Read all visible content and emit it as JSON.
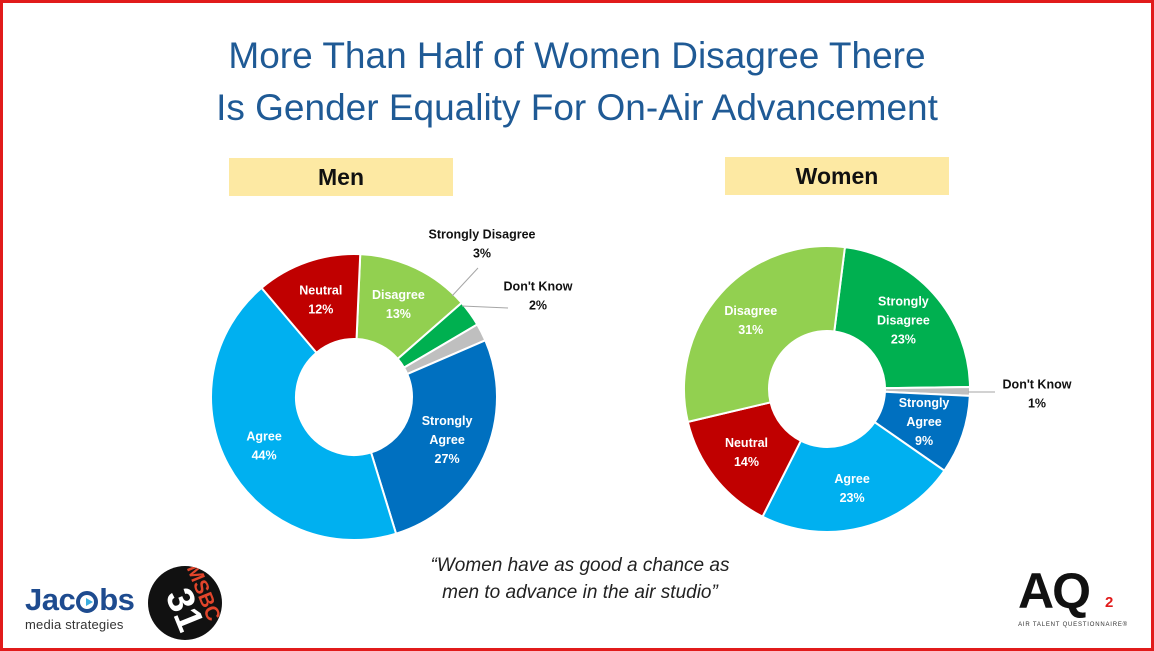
{
  "title": {
    "line1": "More Than Half of Women Disagree There",
    "line2": "Is Gender Equality For On-Air Advancement"
  },
  "quote": {
    "line1": "“Women have as good a chance as",
    "line2": "men to advance in the air studio”"
  },
  "logos": {
    "jacobs_part1": "Jac",
    "jacobs_part2": "bs",
    "jacobs_sub": "media strategies",
    "msbc_text": "MSBC",
    "msbc_num": "31",
    "aq_main": "AQ",
    "aq_superscript": "2",
    "aq_sub": "AIR TALENT QUESTIONNAIRE®"
  },
  "colors": {
    "disagree": "#92d050",
    "strongly_disagree": "#00b050",
    "dont_know": "#bfbfbf",
    "strongly_agree": "#0070c0",
    "agree": "#00b0f0",
    "neutral": "#c00000",
    "title": "#1f5a95",
    "label_box": "#fde9a3",
    "frame": "#e11b1b"
  },
  "chart_data": [
    {
      "type": "pie",
      "title": "Men",
      "slices": [
        {
          "lines": [
            "Disagree",
            "13%"
          ],
          "value": 13,
          "color": "#92d050",
          "label_position": "inside"
        },
        {
          "lines": [
            "Strongly Disagree",
            "3%"
          ],
          "value": 3,
          "color": "#00b050",
          "label_position": "outside-top"
        },
        {
          "lines": [
            "Don't Know",
            "2%"
          ],
          "value": 2,
          "color": "#bfbfbf",
          "label_position": "outside-right"
        },
        {
          "lines": [
            "Strongly",
            "Agree",
            "27%"
          ],
          "value": 27,
          "color": "#0070c0",
          "label_position": "inside"
        },
        {
          "lines": [
            "Agree",
            "44%"
          ],
          "value": 44,
          "color": "#00b0f0",
          "label_position": "inside"
        },
        {
          "lines": [
            "Neutral",
            "12%"
          ],
          "value": 12,
          "color": "#c00000",
          "label_position": "inside"
        }
      ]
    },
    {
      "type": "pie",
      "title": "Women",
      "slices": [
        {
          "lines": [
            "Strongly",
            "Disagree",
            "23%"
          ],
          "value": 23,
          "color": "#00b050",
          "label_position": "inside"
        },
        {
          "lines": [
            "Don't Know",
            "1%"
          ],
          "value": 1,
          "color": "#bfbfbf",
          "label_position": "outside-right"
        },
        {
          "lines": [
            "Strongly",
            "Agree",
            "9%"
          ],
          "value": 9,
          "color": "#0070c0",
          "label_position": "inside"
        },
        {
          "lines": [
            "Agree",
            "23%"
          ],
          "value": 23,
          "color": "#00b0f0",
          "label_position": "inside"
        },
        {
          "lines": [
            "Neutral",
            "14%"
          ],
          "value": 14,
          "color": "#c00000",
          "label_position": "inside"
        },
        {
          "lines": [
            "Disagree",
            "31%"
          ],
          "value": 31,
          "color": "#92d050",
          "label_position": "inside"
        }
      ]
    }
  ]
}
